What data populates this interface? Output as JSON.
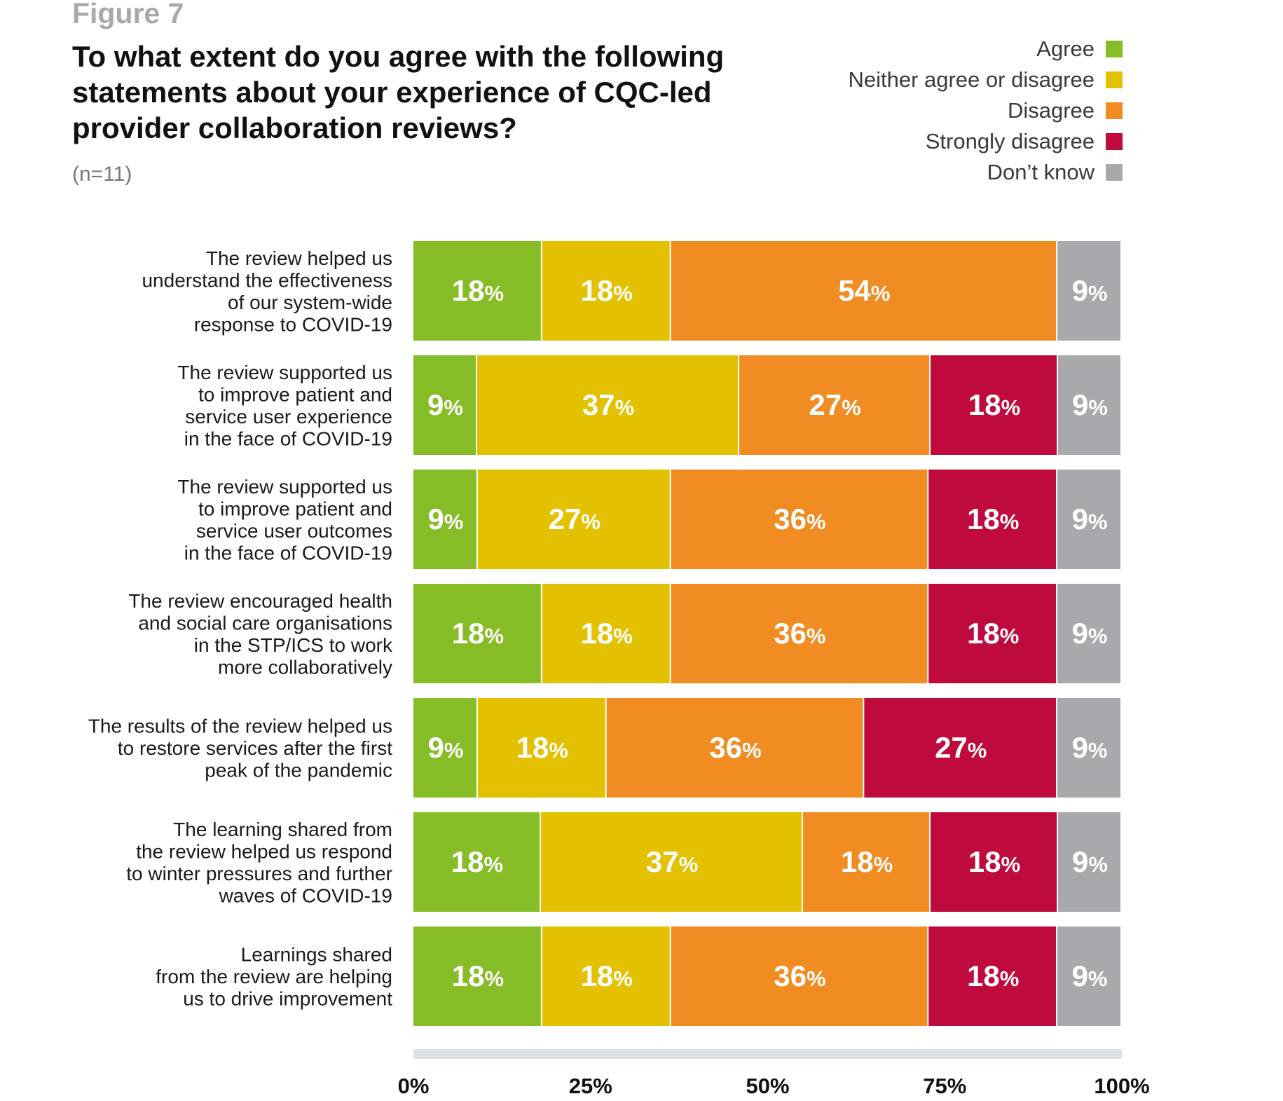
{
  "figure_label": "Figure 7",
  "chart_data": {
    "type": "bar",
    "orientation": "horizontal",
    "stacked": true,
    "title": "To what extent do you agree with the following statements about your experience of CQC-led provider collaboration reviews?",
    "subtitle": "(n=11)",
    "categories": [
      [
        "The review helped us",
        "understand the effectiveness",
        "of our system-wide",
        "response to COVID-19"
      ],
      [
        "The review supported us",
        "to improve patient and",
        "service user experience",
        "in the face of COVID-19"
      ],
      [
        "The review supported us",
        "to improve patient and",
        "service user outcomes",
        "in the face of COVID-19"
      ],
      [
        "The review encouraged health",
        "and social care organisations",
        "in the STP/ICS to work",
        "more collaboratively"
      ],
      [
        "The results of the review helped us",
        "to restore services after the first",
        "peak of the pandemic"
      ],
      [
        "The learning shared from",
        "the review helped us respond",
        "to winter pressures and further",
        "waves of COVID-19"
      ],
      [
        "Learnings shared",
        "from the review are helping",
        "us to drive improvement"
      ]
    ],
    "series": [
      {
        "name": "Agree",
        "color": "#86bc25",
        "values": [
          18,
          9,
          9,
          18,
          9,
          18,
          18
        ]
      },
      {
        "name": "Neither agree or disagree",
        "color": "#e3c000",
        "values": [
          18,
          37,
          27,
          18,
          18,
          37,
          18
        ]
      },
      {
        "name": "Disagree",
        "color": "#f08c22",
        "values": [
          54,
          27,
          36,
          36,
          36,
          18,
          36
        ]
      },
      {
        "name": "Strongly disagree",
        "color": "#be0a3c",
        "values": [
          0,
          18,
          18,
          18,
          27,
          18,
          18
        ]
      },
      {
        "name": "Don’t know",
        "color": "#a7a9ac",
        "values": [
          9,
          9,
          9,
          9,
          9,
          9,
          9
        ]
      }
    ],
    "value_suffix": "%",
    "xlim": [
      0,
      100
    ],
    "xticks": [
      0,
      25,
      50,
      75,
      100
    ],
    "xtick_labels": [
      "0%",
      "25%",
      "50%",
      "75%",
      "100%"
    ],
    "axis_bar_color": "#dde3e6",
    "legend_position": "top-right",
    "grid": false
  }
}
